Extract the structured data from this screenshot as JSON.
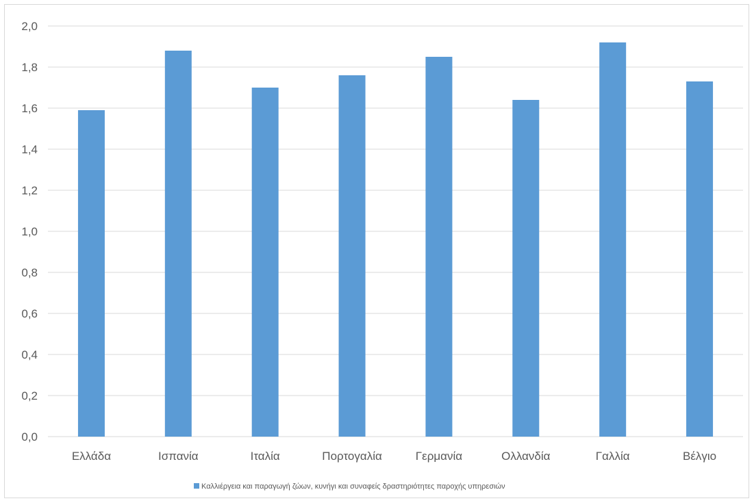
{
  "chart_data": {
    "type": "bar",
    "categories": [
      "Ελλάδα",
      "Ισπανία",
      "Ιταλία",
      "Πορτογαλία",
      "Γερμανία",
      "Ολλανδία",
      "Γαλλία",
      "Βέλγιο"
    ],
    "series": [
      {
        "name": "Καλλιέργεια και παραγωγή ζώων, κυνήγι και συναφείς δραστηριότητες παροχής υπηρεσιών",
        "color": "#5b9bd5",
        "values": [
          1.59,
          1.88,
          1.7,
          1.76,
          1.85,
          1.64,
          1.92,
          1.73
        ]
      }
    ],
    "yticks": [
      "0,0",
      "0,2",
      "0,4",
      "0,6",
      "0,8",
      "1,0",
      "1,2",
      "1,4",
      "1,6",
      "1,8",
      "2,0"
    ],
    "ylim": [
      0,
      2.0
    ],
    "grid": true,
    "gridColor": "#d9d9d9",
    "legend_position": "bottom",
    "title": "",
    "xlabel": "",
    "ylabel": ""
  }
}
